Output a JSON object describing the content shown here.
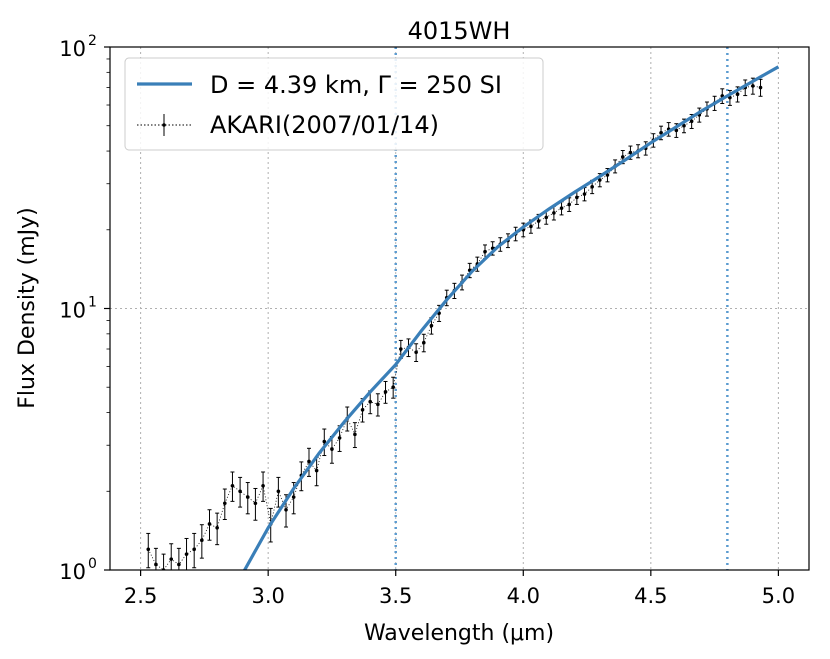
{
  "chart_data": {
    "type": "line",
    "title": "4015WH",
    "xlabel": "Wavelength (μm)",
    "ylabel": "Flux Density (mJy)",
    "xlim": [
      2.38,
      5.12
    ],
    "ylim": [
      1,
      100
    ],
    "yscale": "log",
    "grid": true,
    "legend_position": "top-left",
    "xticks": [
      2.5,
      3.0,
      3.5,
      4.0,
      4.5,
      5.0
    ],
    "xtick_labels": [
      "2.5",
      "3.0",
      "3.5",
      "4.0",
      "4.5",
      "5.0"
    ],
    "yticks": [
      1,
      10,
      100
    ],
    "ytick_base": "10",
    "ytick_exponents": [
      "0",
      "1",
      "2"
    ],
    "vlines": [
      3.5,
      4.8
    ],
    "colors": {
      "model": "#3a7fb8",
      "observed": "#000000",
      "vline": "#5b9bd0",
      "grid": "#b0b0b0"
    },
    "series": [
      {
        "name": "model",
        "legend_label": "D = 4.39 km, Γ = 250 SI",
        "style": "line",
        "x": [
          2.9,
          3.0,
          3.1,
          3.2,
          3.3,
          3.4,
          3.5,
          3.6,
          3.7,
          3.8,
          3.9,
          4.0,
          4.1,
          4.2,
          4.3,
          4.4,
          4.5,
          4.6,
          4.7,
          4.8,
          4.9,
          5.0
        ],
        "y": [
          0.97,
          1.45,
          2.05,
          2.8,
          3.7,
          4.8,
          6.1,
          8.2,
          10.8,
          13.9,
          17.2,
          20.5,
          24.0,
          27.8,
          32.0,
          37.0,
          43.0,
          49.5,
          57.0,
          65.0,
          74.0,
          84.0
        ]
      },
      {
        "name": "observed",
        "legend_label": "AKARI(2007/01/14)",
        "style": "errorbar",
        "x": [
          2.53,
          2.56,
          2.59,
          2.62,
          2.65,
          2.68,
          2.71,
          2.74,
          2.77,
          2.8,
          2.83,
          2.86,
          2.89,
          2.92,
          2.95,
          2.98,
          3.01,
          3.04,
          3.07,
          3.1,
          3.13,
          3.16,
          3.19,
          3.22,
          3.25,
          3.28,
          3.31,
          3.34,
          3.37,
          3.4,
          3.43,
          3.46,
          3.49,
          3.52,
          3.55,
          3.58,
          3.61,
          3.64,
          3.67,
          3.7,
          3.73,
          3.76,
          3.79,
          3.82,
          3.85,
          3.88,
          3.91,
          3.94,
          3.97,
          4.0,
          4.03,
          4.06,
          4.09,
          4.12,
          4.15,
          4.18,
          4.21,
          4.24,
          4.27,
          4.3,
          4.33,
          4.36,
          4.39,
          4.42,
          4.45,
          4.48,
          4.51,
          4.54,
          4.57,
          4.6,
          4.63,
          4.66,
          4.69,
          4.72,
          4.75,
          4.78,
          4.81,
          4.84,
          4.87,
          4.9,
          4.93
        ],
        "y": [
          1.2,
          1.05,
          1.0,
          1.1,
          1.05,
          1.15,
          1.2,
          1.3,
          1.5,
          1.45,
          1.8,
          2.1,
          2.0,
          1.9,
          1.8,
          2.1,
          1.5,
          2.0,
          1.7,
          1.9,
          2.3,
          2.6,
          2.4,
          3.1,
          2.9,
          3.2,
          3.8,
          3.3,
          4.1,
          4.4,
          4.3,
          4.8,
          5.0,
          7.0,
          7.1,
          6.8,
          7.4,
          8.6,
          9.6,
          11.0,
          11.7,
          12.6,
          14.0,
          14.8,
          16.5,
          17.0,
          17.6,
          18.2,
          19.3,
          20.0,
          20.6,
          21.6,
          22.3,
          23.2,
          24.2,
          25.0,
          26.6,
          27.4,
          29.2,
          31.0,
          32.4,
          35.0,
          38.0,
          39.5,
          40.0,
          41.0,
          44.0,
          47.0,
          48.5,
          48.0,
          50.0,
          52.0,
          55.0,
          58.0,
          61.0,
          65.0,
          64.0,
          66.0,
          70.0,
          71.0,
          70.0
        ],
        "yerr": [
          0.18,
          0.16,
          0.15,
          0.16,
          0.16,
          0.17,
          0.18,
          0.19,
          0.2,
          0.2,
          0.24,
          0.27,
          0.26,
          0.26,
          0.25,
          0.27,
          0.22,
          0.26,
          0.24,
          0.26,
          0.29,
          0.32,
          0.3,
          0.36,
          0.34,
          0.36,
          0.4,
          0.36,
          0.42,
          0.44,
          0.42,
          0.46,
          0.46,
          0.55,
          0.55,
          0.53,
          0.57,
          0.62,
          0.68,
          0.75,
          0.78,
          0.82,
          0.88,
          0.92,
          1.0,
          1.0,
          1.05,
          1.1,
          1.15,
          1.2,
          1.2,
          1.3,
          1.3,
          1.4,
          1.4,
          1.5,
          1.6,
          1.6,
          1.7,
          1.8,
          1.9,
          2.0,
          2.2,
          2.3,
          2.3,
          2.4,
          2.6,
          2.8,
          2.9,
          2.9,
          3.0,
          3.2,
          3.4,
          3.6,
          3.8,
          4.2,
          4.2,
          4.4,
          4.8,
          5.0,
          5.2
        ]
      }
    ]
  }
}
